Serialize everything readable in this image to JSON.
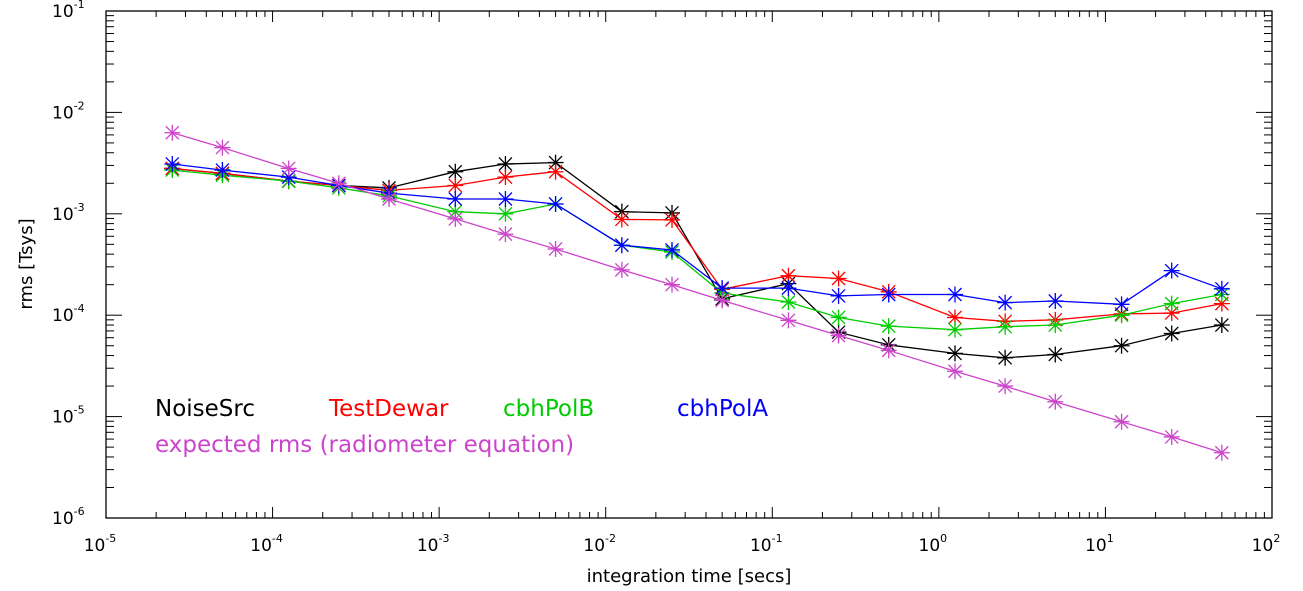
{
  "chart_data": {
    "type": "line",
    "title": "",
    "xlabel": "integration time [secs]",
    "ylabel": "rms [Tsys]",
    "xscale": "log",
    "yscale": "log",
    "xlim": [
      1e-05,
      100
    ],
    "ylim": [
      1e-06,
      0.1
    ],
    "grid": false,
    "x_ticks": [
      {
        "base": "10",
        "exp": "-5"
      },
      {
        "base": "10",
        "exp": "-4"
      },
      {
        "base": "10",
        "exp": "-3"
      },
      {
        "base": "10",
        "exp": "-2"
      },
      {
        "base": "10",
        "exp": "-1"
      },
      {
        "base": "10",
        "exp": "0"
      },
      {
        "base": "10",
        "exp": "1"
      },
      {
        "base": "10",
        "exp": "2"
      }
    ],
    "y_ticks": [
      {
        "base": "10",
        "exp": "-6"
      },
      {
        "base": "10",
        "exp": "-5"
      },
      {
        "base": "10",
        "exp": "-4"
      },
      {
        "base": "10",
        "exp": "-3"
      },
      {
        "base": "10",
        "exp": "-2"
      },
      {
        "base": "10",
        "exp": "-1"
      }
    ],
    "x": [
      2.5e-05,
      5e-05,
      0.000125,
      0.00025,
      0.0005,
      0.00125,
      0.0025,
      0.005,
      0.0125,
      0.025,
      0.05,
      0.125,
      0.25,
      0.5,
      1.25,
      2.5,
      5,
      12.5,
      25,
      50
    ],
    "marker": "asterisk",
    "legend_placement": "bottom-left (inside plot)",
    "series": [
      {
        "name": "NoiseSrc",
        "color": "#000000",
        "values": [
          0.0028,
          0.0025,
          0.0021,
          0.0019,
          0.0018,
          0.0026,
          0.0031,
          0.0032,
          0.00105,
          0.00102,
          0.000145,
          0.000205,
          6.8e-05,
          5.1e-05,
          4.2e-05,
          3.8e-05,
          4.1e-05,
          5e-05,
          6.6e-05,
          8e-05
        ]
      },
      {
        "name": "TestDewar",
        "color": "#ff0000",
        "values": [
          0.0028,
          0.0025,
          0.0021,
          0.0019,
          0.0017,
          0.0019,
          0.0023,
          0.0026,
          0.00088,
          0.00087,
          0.00018,
          0.000245,
          0.00023,
          0.00017,
          9.5e-05,
          8.7e-05,
          9e-05,
          0.000103,
          0.000105,
          0.00013
        ]
      },
      {
        "name": "cbhPolB",
        "color": "#00cc00",
        "values": [
          0.0027,
          0.0024,
          0.0021,
          0.0018,
          0.0015,
          0.00105,
          0.001,
          0.00125,
          0.00049,
          0.00042,
          0.000165,
          0.000135,
          9.5e-05,
          7.8e-05,
          7.2e-05,
          7.7e-05,
          8e-05,
          0.0001,
          0.00013,
          0.00016
        ]
      },
      {
        "name": "cbhPolA",
        "color": "#0000ff",
        "values": [
          0.0031,
          0.0027,
          0.0023,
          0.0019,
          0.0016,
          0.0014,
          0.0014,
          0.00125,
          0.00049,
          0.00044,
          0.000185,
          0.000185,
          0.000155,
          0.00016,
          0.00016,
          0.000133,
          0.000138,
          0.000128,
          0.000275,
          0.000182
        ]
      },
      {
        "name": "expected rms (radiometer equation)",
        "color": "#cc44cc",
        "values": [
          0.0063,
          0.0045,
          0.0028,
          0.002,
          0.0014,
          0.00089,
          0.00063,
          0.00045,
          0.00028,
          0.0002,
          0.00014,
          8.9e-05,
          6.3e-05,
          4.5e-05,
          2.8e-05,
          2e-05,
          1.4e-05,
          8.9e-06,
          6.3e-06,
          4.4e-06
        ]
      }
    ]
  }
}
